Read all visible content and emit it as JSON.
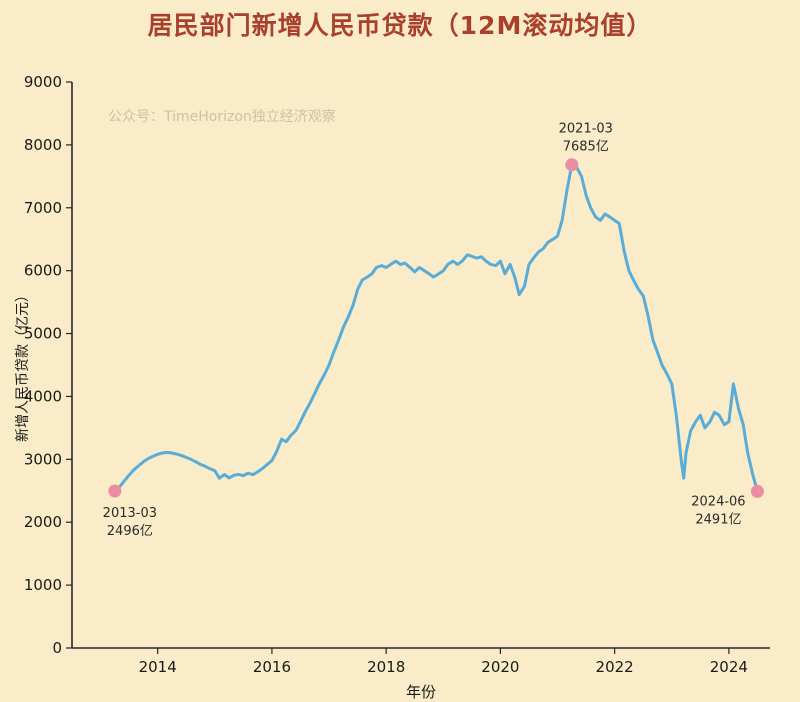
{
  "chart_data": {
    "type": "line",
    "title": "居民部门新增人民币贷款（12M滚动均值）",
    "watermark": "公众号：TimeHorizon独立经济观察",
    "xlabel": "年份",
    "ylabel": "新增人民币贷款（亿元）",
    "xlim": [
      2012.5,
      2024.72
    ],
    "ylim": [
      0,
      9000
    ],
    "xticks": [
      2014,
      2016,
      2018,
      2020,
      2022,
      2024
    ],
    "yticks": [
      0,
      1000,
      2000,
      3000,
      4000,
      5000,
      6000,
      7000,
      8000,
      9000
    ],
    "grid": false,
    "legend": "none",
    "background_color": "#FAECC8",
    "title_color": "#A8402C",
    "line_color": "#58ACD8",
    "marker_color": "#EC8CA0",
    "series": [
      {
        "name": "12M滚动均值",
        "points": [
          [
            2013.25,
            2496
          ],
          [
            2013.33,
            2560
          ],
          [
            2013.42,
            2660
          ],
          [
            2013.5,
            2750
          ],
          [
            2013.58,
            2830
          ],
          [
            2013.67,
            2900
          ],
          [
            2013.75,
            2960
          ],
          [
            2013.83,
            3010
          ],
          [
            2013.92,
            3050
          ],
          [
            2014.0,
            3080
          ],
          [
            2014.08,
            3100
          ],
          [
            2014.17,
            3110
          ],
          [
            2014.25,
            3100
          ],
          [
            2014.33,
            3085
          ],
          [
            2014.42,
            3060
          ],
          [
            2014.5,
            3030
          ],
          [
            2014.58,
            3000
          ],
          [
            2014.67,
            2960
          ],
          [
            2014.75,
            2920
          ],
          [
            2014.83,
            2890
          ],
          [
            2014.92,
            2850
          ],
          [
            2015.0,
            2820
          ],
          [
            2015.08,
            2700
          ],
          [
            2015.17,
            2760
          ],
          [
            2015.25,
            2705
          ],
          [
            2015.33,
            2745
          ],
          [
            2015.42,
            2760
          ],
          [
            2015.5,
            2740
          ],
          [
            2015.58,
            2780
          ],
          [
            2015.67,
            2755
          ],
          [
            2015.75,
            2800
          ],
          [
            2015.83,
            2850
          ],
          [
            2015.92,
            2920
          ],
          [
            2016.0,
            2980
          ],
          [
            2016.08,
            3120
          ],
          [
            2016.17,
            3320
          ],
          [
            2016.25,
            3280
          ],
          [
            2016.33,
            3380
          ],
          [
            2016.42,
            3460
          ],
          [
            2016.5,
            3600
          ],
          [
            2016.58,
            3750
          ],
          [
            2016.67,
            3900
          ],
          [
            2016.75,
            4050
          ],
          [
            2016.83,
            4200
          ],
          [
            2016.92,
            4350
          ],
          [
            2017.0,
            4500
          ],
          [
            2017.08,
            4700
          ],
          [
            2017.17,
            4900
          ],
          [
            2017.25,
            5100
          ],
          [
            2017.33,
            5250
          ],
          [
            2017.42,
            5450
          ],
          [
            2017.5,
            5700
          ],
          [
            2017.58,
            5850
          ],
          [
            2017.67,
            5900
          ],
          [
            2017.75,
            5950
          ],
          [
            2017.83,
            6050
          ],
          [
            2017.92,
            6080
          ],
          [
            2018.0,
            6050
          ],
          [
            2018.08,
            6100
          ],
          [
            2018.17,
            6150
          ],
          [
            2018.25,
            6100
          ],
          [
            2018.33,
            6120
          ],
          [
            2018.42,
            6050
          ],
          [
            2018.5,
            5980
          ],
          [
            2018.58,
            6050
          ],
          [
            2018.67,
            6000
          ],
          [
            2018.75,
            5950
          ],
          [
            2018.83,
            5900
          ],
          [
            2018.92,
            5950
          ],
          [
            2019.0,
            6000
          ],
          [
            2019.08,
            6100
          ],
          [
            2019.17,
            6150
          ],
          [
            2019.25,
            6100
          ],
          [
            2019.33,
            6150
          ],
          [
            2019.42,
            6250
          ],
          [
            2019.5,
            6230
          ],
          [
            2019.58,
            6200
          ],
          [
            2019.67,
            6220
          ],
          [
            2019.75,
            6150
          ],
          [
            2019.83,
            6100
          ],
          [
            2019.92,
            6080
          ],
          [
            2020.0,
            6150
          ],
          [
            2020.08,
            5950
          ],
          [
            2020.17,
            6100
          ],
          [
            2020.25,
            5900
          ],
          [
            2020.33,
            5620
          ],
          [
            2020.42,
            5750
          ],
          [
            2020.5,
            6100
          ],
          [
            2020.58,
            6200
          ],
          [
            2020.67,
            6300
          ],
          [
            2020.75,
            6350
          ],
          [
            2020.83,
            6450
          ],
          [
            2020.92,
            6500
          ],
          [
            2021.0,
            6550
          ],
          [
            2021.08,
            6800
          ],
          [
            2021.17,
            7300
          ],
          [
            2021.25,
            7685
          ],
          [
            2021.33,
            7650
          ],
          [
            2021.42,
            7500
          ],
          [
            2021.5,
            7200
          ],
          [
            2021.58,
            7000
          ],
          [
            2021.67,
            6850
          ],
          [
            2021.75,
            6800
          ],
          [
            2021.83,
            6900
          ],
          [
            2021.92,
            6850
          ],
          [
            2022.0,
            6800
          ],
          [
            2022.08,
            6750
          ],
          [
            2022.17,
            6300
          ],
          [
            2022.25,
            6000
          ],
          [
            2022.33,
            5850
          ],
          [
            2022.42,
            5700
          ],
          [
            2022.5,
            5600
          ],
          [
            2022.58,
            5300
          ],
          [
            2022.67,
            4900
          ],
          [
            2022.75,
            4700
          ],
          [
            2022.83,
            4500
          ],
          [
            2022.92,
            4350
          ],
          [
            2023.0,
            4200
          ],
          [
            2023.08,
            3700
          ],
          [
            2023.17,
            2950
          ],
          [
            2023.21,
            2700
          ],
          [
            2023.25,
            3100
          ],
          [
            2023.33,
            3450
          ],
          [
            2023.42,
            3600
          ],
          [
            2023.5,
            3700
          ],
          [
            2023.58,
            3500
          ],
          [
            2023.67,
            3600
          ],
          [
            2023.75,
            3750
          ],
          [
            2023.83,
            3700
          ],
          [
            2023.92,
            3550
          ],
          [
            2024.0,
            3600
          ],
          [
            2024.08,
            4200
          ],
          [
            2024.17,
            3800
          ],
          [
            2024.25,
            3550
          ],
          [
            2024.33,
            3100
          ],
          [
            2024.42,
            2750
          ],
          [
            2024.5,
            2491
          ]
        ]
      }
    ],
    "markers": [
      {
        "x": 2013.25,
        "y": 2496
      },
      {
        "x": 2021.25,
        "y": 7685
      },
      {
        "x": 2024.5,
        "y": 2491
      }
    ],
    "annotations": [
      {
        "lines": [
          "2013-03",
          "2496亿"
        ],
        "x": 2013.25,
        "y": 2496,
        "placement": "below-right"
      },
      {
        "lines": [
          "2021-03",
          "7685亿"
        ],
        "x": 2021.25,
        "y": 7685,
        "placement": "above"
      },
      {
        "lines": [
          "2024-06",
          "2491亿"
        ],
        "x": 2024.5,
        "y": 2491,
        "placement": "below-left"
      }
    ]
  }
}
